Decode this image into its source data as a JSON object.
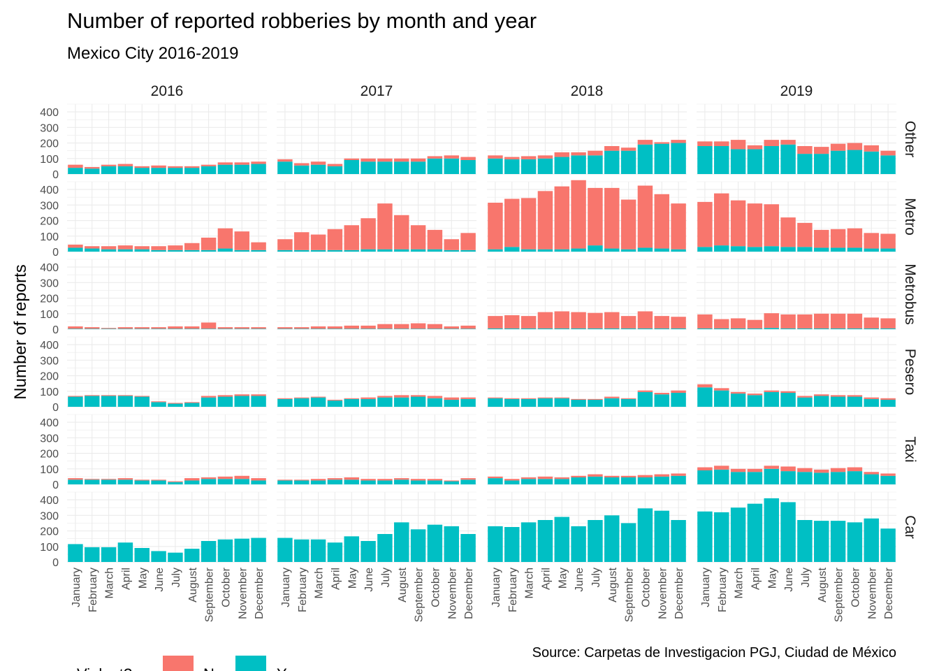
{
  "chart_data": {
    "type": "bar",
    "stacked": true,
    "title": "Number of reported robberies by month and year",
    "subtitle": "Mexico City 2016-2019",
    "ylabel": "Number of reports",
    "caption": "Source: Carpetas de Investigacion PGJ, Ciudad de México",
    "ylim": [
      0,
      450
    ],
    "yticks": [
      0,
      100,
      200,
      300,
      400
    ],
    "grid": true,
    "legend": {
      "title": "Violent?",
      "position": "bottom-left",
      "entries": [
        "No",
        "Yes"
      ]
    },
    "colors": {
      "No": "#F8766D",
      "Yes": "#00BFC4"
    },
    "years": [
      "2016",
      "2017",
      "2018",
      "2019"
    ],
    "months": [
      "January",
      "February",
      "March",
      "April",
      "May",
      "June",
      "July",
      "August",
      "September",
      "October",
      "November",
      "December"
    ],
    "panels": [
      {
        "type": "Other",
        "yes": [
          [
            40,
            35,
            50,
            50,
            40,
            40,
            40,
            40,
            50,
            60,
            60,
            65
          ],
          [
            80,
            55,
            60,
            50,
            90,
            80,
            80,
            80,
            80,
            100,
            100,
            90
          ],
          [
            100,
            95,
            95,
            100,
            110,
            120,
            120,
            150,
            150,
            190,
            195,
            200
          ],
          [
            180,
            180,
            160,
            160,
            180,
            190,
            130,
            130,
            150,
            155,
            145,
            120
          ]
        ],
        "no": [
          [
            20,
            10,
            10,
            15,
            10,
            15,
            10,
            10,
            10,
            15,
            15,
            15
          ],
          [
            15,
            15,
            20,
            15,
            10,
            20,
            20,
            20,
            20,
            15,
            20,
            20
          ],
          [
            20,
            15,
            20,
            20,
            30,
            20,
            30,
            30,
            20,
            30,
            10,
            20
          ],
          [
            30,
            30,
            60,
            25,
            40,
            30,
            50,
            45,
            45,
            45,
            40,
            30
          ]
        ]
      },
      {
        "type": "Metro",
        "yes": [
          [
            25,
            20,
            15,
            15,
            15,
            10,
            10,
            10,
            10,
            20,
            10,
            10
          ],
          [
            10,
            10,
            10,
            10,
            10,
            15,
            15,
            15,
            15,
            15,
            10,
            10
          ],
          [
            15,
            30,
            15,
            15,
            15,
            20,
            40,
            20,
            15,
            25,
            20,
            15
          ],
          [
            30,
            40,
            35,
            30,
            35,
            30,
            30,
            25,
            25,
            25,
            20,
            20
          ]
        ],
        "no": [
          [
            20,
            15,
            20,
            25,
            20,
            25,
            30,
            45,
            80,
            130,
            120,
            50
          ],
          [
            70,
            115,
            100,
            135,
            160,
            200,
            295,
            220,
            155,
            125,
            70,
            110
          ],
          [
            300,
            310,
            330,
            375,
            405,
            440,
            370,
            390,
            320,
            400,
            350,
            295
          ],
          [
            290,
            335,
            295,
            280,
            270,
            190,
            155,
            115,
            120,
            125,
            100,
            95
          ]
        ]
      },
      {
        "type": "Metrobus",
        "yes": [
          [
            3,
            3,
            3,
            3,
            3,
            3,
            3,
            3,
            3,
            3,
            3,
            3
          ],
          [
            3,
            3,
            3,
            3,
            3,
            3,
            3,
            3,
            3,
            3,
            3,
            3
          ],
          [
            5,
            5,
            5,
            5,
            5,
            5,
            5,
            5,
            5,
            5,
            5,
            5
          ],
          [
            5,
            5,
            5,
            5,
            8,
            5,
            5,
            5,
            5,
            5,
            5,
            5
          ]
        ],
        "no": [
          [
            15,
            10,
            5,
            10,
            10,
            10,
            15,
            15,
            40,
            10,
            10,
            10
          ],
          [
            10,
            10,
            15,
            15,
            20,
            20,
            30,
            30,
            35,
            30,
            15,
            20
          ],
          [
            80,
            85,
            80,
            105,
            110,
            105,
            100,
            105,
            80,
            110,
            80,
            75
          ],
          [
            90,
            60,
            65,
            55,
            95,
            90,
            90,
            95,
            95,
            95,
            70,
            65
          ]
        ]
      },
      {
        "type": "Pesero",
        "yes": [
          [
            65,
            70,
            70,
            70,
            65,
            30,
            20,
            25,
            60,
            65,
            70,
            70
          ],
          [
            50,
            55,
            60,
            40,
            50,
            50,
            60,
            60,
            65,
            55,
            45,
            50
          ],
          [
            55,
            50,
            50,
            55,
            55,
            45,
            45,
            55,
            50,
            95,
            80,
            90
          ],
          [
            125,
            105,
            85,
            75,
            95,
            90,
            60,
            70,
            65,
            65,
            50,
            45
          ]
        ],
        "no": [
          [
            5,
            5,
            5,
            5,
            5,
            5,
            5,
            5,
            10,
            10,
            10,
            10
          ],
          [
            5,
            5,
            5,
            5,
            5,
            10,
            10,
            15,
            10,
            15,
            15,
            10
          ],
          [
            5,
            5,
            5,
            5,
            5,
            5,
            5,
            10,
            5,
            10,
            10,
            15
          ],
          [
            20,
            15,
            10,
            10,
            10,
            10,
            10,
            10,
            10,
            10,
            10,
            10
          ]
        ]
      },
      {
        "type": "Taxi",
        "yes": [
          [
            30,
            30,
            30,
            30,
            25,
            25,
            15,
            25,
            35,
            35,
            35,
            25
          ],
          [
            25,
            25,
            25,
            30,
            30,
            25,
            25,
            30,
            25,
            25,
            20,
            30
          ],
          [
            40,
            25,
            35,
            35,
            35,
            45,
            50,
            45,
            45,
            45,
            50,
            55
          ],
          [
            90,
            95,
            80,
            80,
            100,
            85,
            80,
            75,
            80,
            85,
            65,
            55
          ]
        ],
        "no": [
          [
            10,
            5,
            5,
            10,
            5,
            5,
            5,
            15,
            10,
            15,
            20,
            15
          ],
          [
            5,
            5,
            10,
            10,
            15,
            10,
            10,
            10,
            10,
            10,
            5,
            10
          ],
          [
            10,
            10,
            10,
            15,
            10,
            10,
            15,
            10,
            10,
            15,
            15,
            15
          ],
          [
            20,
            25,
            20,
            20,
            20,
            30,
            25,
            20,
            25,
            25,
            15,
            15
          ]
        ]
      },
      {
        "type": "Car",
        "yes": [
          [
            115,
            95,
            95,
            125,
            90,
            70,
            60,
            85,
            135,
            145,
            150,
            155
          ],
          [
            155,
            145,
            145,
            125,
            165,
            135,
            180,
            255,
            210,
            240,
            230,
            180
          ],
          [
            230,
            225,
            255,
            270,
            290,
            230,
            270,
            300,
            250,
            345,
            330,
            270
          ],
          [
            325,
            320,
            350,
            375,
            410,
            385,
            270,
            265,
            265,
            255,
            280,
            215
          ]
        ],
        "no": [
          [
            0,
            0,
            0,
            0,
            0,
            0,
            0,
            0,
            0,
            0,
            0,
            0
          ],
          [
            0,
            0,
            0,
            0,
            0,
            0,
            0,
            0,
            0,
            0,
            0,
            0
          ],
          [
            0,
            0,
            0,
            0,
            0,
            0,
            0,
            0,
            0,
            0,
            0,
            0
          ],
          [
            0,
            0,
            0,
            0,
            0,
            0,
            0,
            0,
            0,
            0,
            0,
            0
          ]
        ]
      }
    ]
  }
}
